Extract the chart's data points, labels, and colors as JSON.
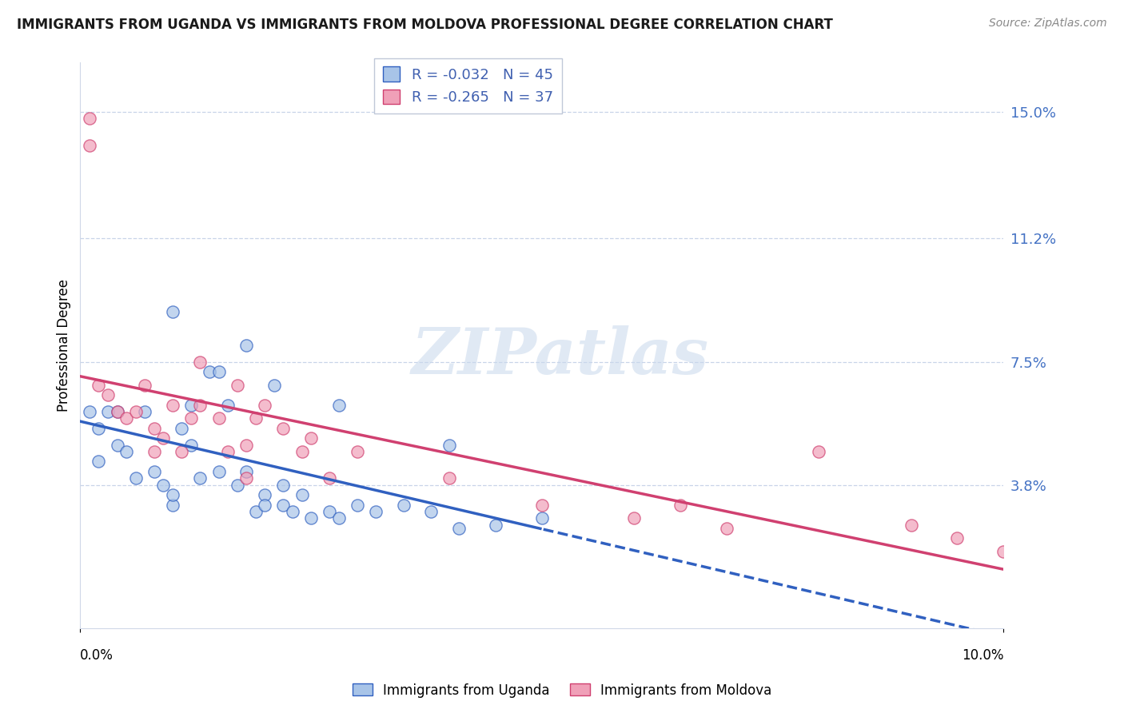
{
  "title": "IMMIGRANTS FROM UGANDA VS IMMIGRANTS FROM MOLDOVA PROFESSIONAL DEGREE CORRELATION CHART",
  "source": "Source: ZipAtlas.com",
  "ylabel": "Professional Degree",
  "ytick_vals": [
    0.15,
    0.112,
    0.075,
    0.038
  ],
  "ytick_labels": [
    "15.0%",
    "11.2%",
    "7.5%",
    "3.8%"
  ],
  "xmin": 0.0,
  "xmax": 0.1,
  "ymin": -0.005,
  "ymax": 0.165,
  "legend_r1": "R = -0.032   N = 45",
  "legend_r2": "R = -0.265   N = 37",
  "color_uganda": "#a8c4e8",
  "color_moldova": "#f0a0b8",
  "color_line_uganda": "#3060c0",
  "color_line_moldova": "#d04070",
  "uganda_x": [
    0.001,
    0.002,
    0.002,
    0.003,
    0.004,
    0.004,
    0.005,
    0.006,
    0.007,
    0.008,
    0.009,
    0.01,
    0.01,
    0.011,
    0.012,
    0.012,
    0.013,
    0.014,
    0.015,
    0.015,
    0.016,
    0.017,
    0.018,
    0.019,
    0.02,
    0.021,
    0.022,
    0.022,
    0.023,
    0.024,
    0.025,
    0.027,
    0.028,
    0.03,
    0.032,
    0.035,
    0.038,
    0.041,
    0.045,
    0.05,
    0.01,
    0.018,
    0.04,
    0.028,
    0.02
  ],
  "uganda_y": [
    0.06,
    0.045,
    0.055,
    0.06,
    0.05,
    0.06,
    0.048,
    0.04,
    0.06,
    0.042,
    0.038,
    0.032,
    0.035,
    0.055,
    0.05,
    0.062,
    0.04,
    0.072,
    0.072,
    0.042,
    0.062,
    0.038,
    0.042,
    0.03,
    0.035,
    0.068,
    0.038,
    0.032,
    0.03,
    0.035,
    0.028,
    0.03,
    0.062,
    0.032,
    0.03,
    0.032,
    0.03,
    0.025,
    0.026,
    0.028,
    0.09,
    0.08,
    0.05,
    0.028,
    0.032
  ],
  "moldova_x": [
    0.001,
    0.001,
    0.002,
    0.003,
    0.004,
    0.005,
    0.006,
    0.007,
    0.008,
    0.009,
    0.01,
    0.011,
    0.012,
    0.013,
    0.015,
    0.016,
    0.017,
    0.018,
    0.019,
    0.02,
    0.022,
    0.024,
    0.025,
    0.027,
    0.03,
    0.04,
    0.05,
    0.06,
    0.065,
    0.07,
    0.08,
    0.09,
    0.095,
    0.1,
    0.013,
    0.008,
    0.018
  ],
  "moldova_y": [
    0.14,
    0.148,
    0.068,
    0.065,
    0.06,
    0.058,
    0.06,
    0.068,
    0.055,
    0.052,
    0.062,
    0.048,
    0.058,
    0.075,
    0.058,
    0.048,
    0.068,
    0.05,
    0.058,
    0.062,
    0.055,
    0.048,
    0.052,
    0.04,
    0.048,
    0.04,
    0.032,
    0.028,
    0.032,
    0.025,
    0.048,
    0.026,
    0.022,
    0.018,
    0.062,
    0.048,
    0.04
  ]
}
